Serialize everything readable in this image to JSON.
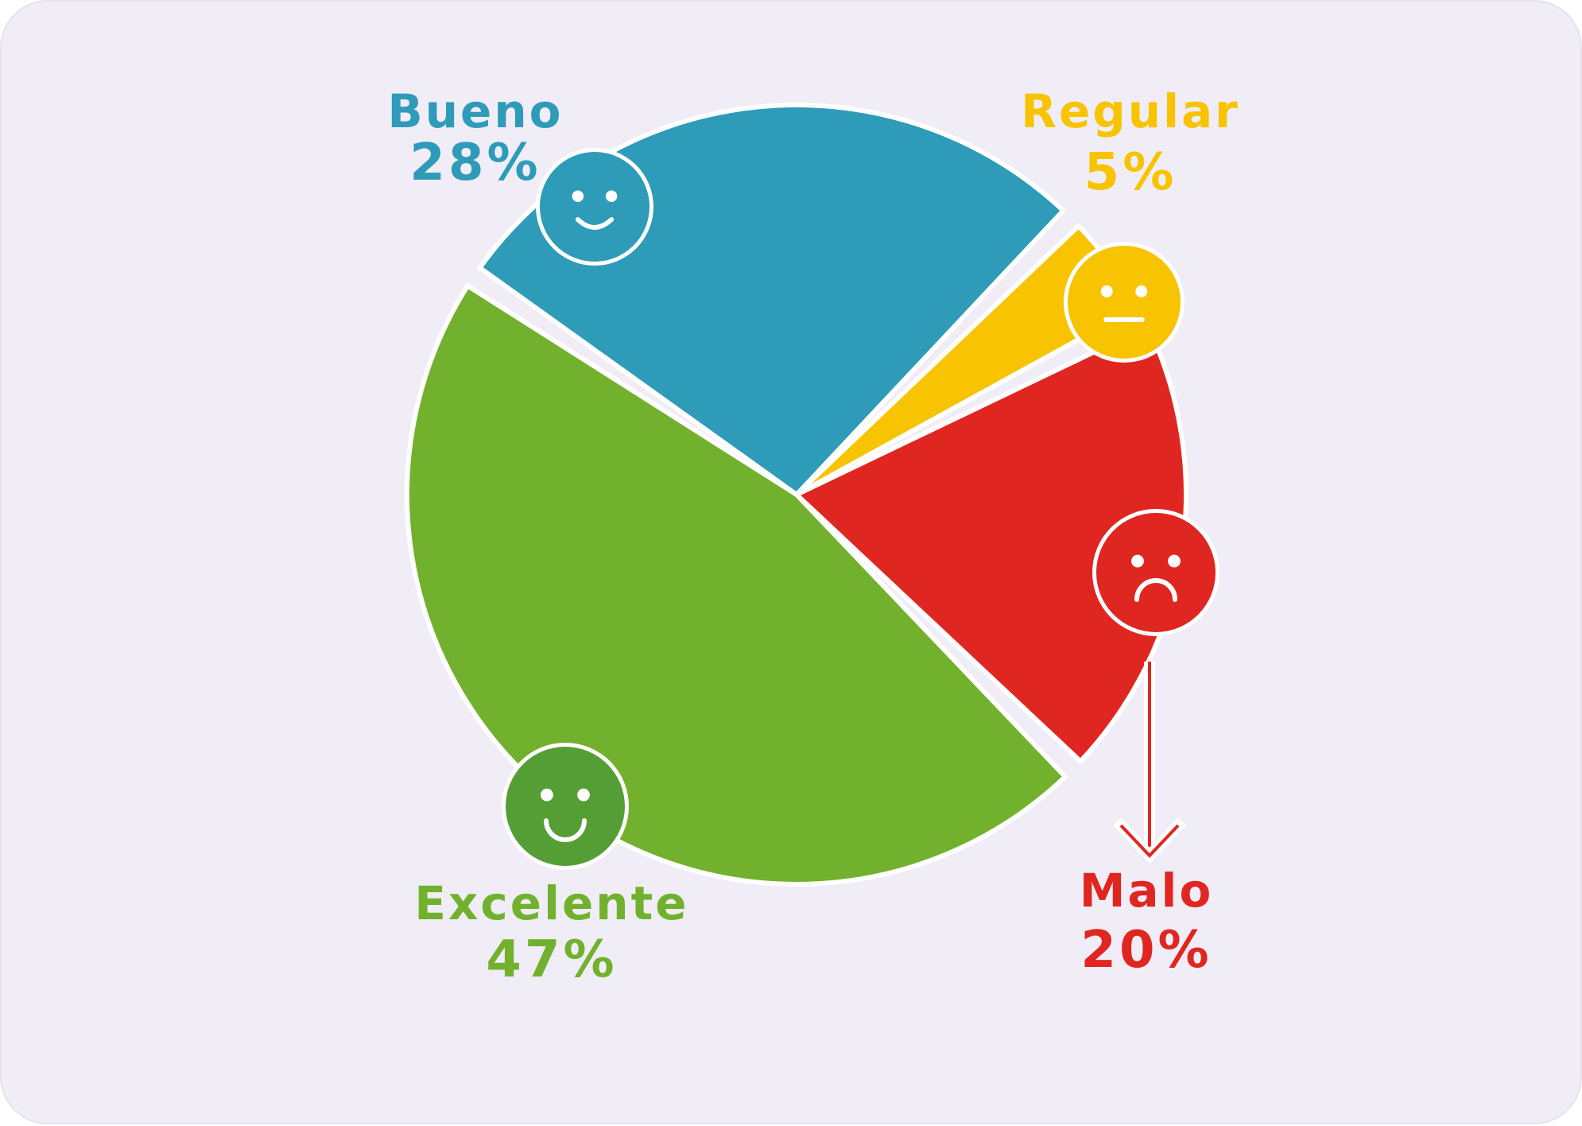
{
  "chart_data": {
    "type": "pie",
    "title": "",
    "slices": [
      {
        "label": "Bueno",
        "value": 28,
        "pct_label": "28%",
        "color": "#2e9bb8",
        "face": "smile-face-icon"
      },
      {
        "label": "Regular",
        "value": 5,
        "pct_label": "5%",
        "color": "#f8c300",
        "face": "neutral-face-icon"
      },
      {
        "label": "Malo",
        "value": 20,
        "pct_label": "20%",
        "color": "#e02621",
        "face": "sad-face-icon"
      },
      {
        "label": "Excelente",
        "value": 47,
        "pct_label": "47%",
        "color": "#72b12d",
        "face": "big-smile-face-icon"
      }
    ],
    "callout_color": "#e02621",
    "excelente_face_color": "#559e35",
    "background": "#f1edf7"
  }
}
